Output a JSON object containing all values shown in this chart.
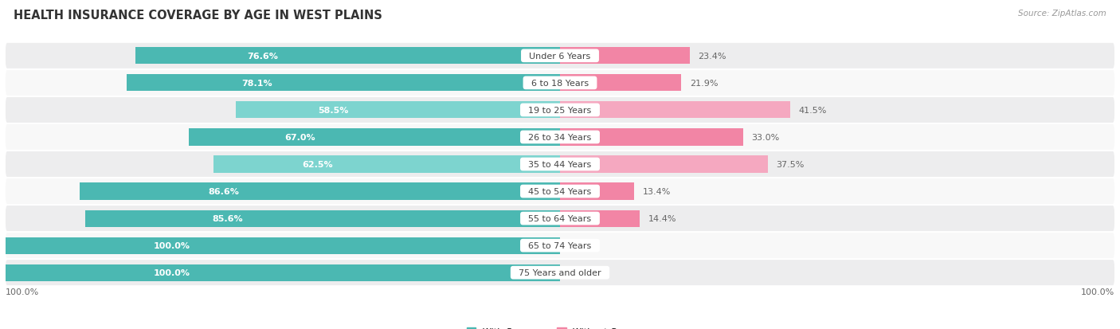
{
  "title": "HEALTH INSURANCE COVERAGE BY AGE IN WEST PLAINS",
  "source": "Source: ZipAtlas.com",
  "categories": [
    "Under 6 Years",
    "6 to 18 Years",
    "19 to 25 Years",
    "26 to 34 Years",
    "35 to 44 Years",
    "45 to 54 Years",
    "55 to 64 Years",
    "65 to 74 Years",
    "75 Years and older"
  ],
  "with_coverage": [
    76.6,
    78.1,
    58.5,
    67.0,
    62.5,
    86.6,
    85.6,
    100.0,
    100.0
  ],
  "without_coverage": [
    23.4,
    21.9,
    41.5,
    33.0,
    37.5,
    13.4,
    14.4,
    0.0,
    0.0
  ],
  "color_with": "#4BB8B2",
  "color_with_light": "#7DD4CF",
  "color_without": "#F285A5",
  "color_without_light": "#F5A8C0",
  "bg_row_odd": "#ededee",
  "bg_row_even": "#f8f8f8",
  "title_fontsize": 10.5,
  "label_fontsize": 8,
  "category_fontsize": 8,
  "legend_fontsize": 8,
  "source_fontsize": 7.5,
  "left_axis_label": "100.0%",
  "right_axis_label": "100.0%"
}
